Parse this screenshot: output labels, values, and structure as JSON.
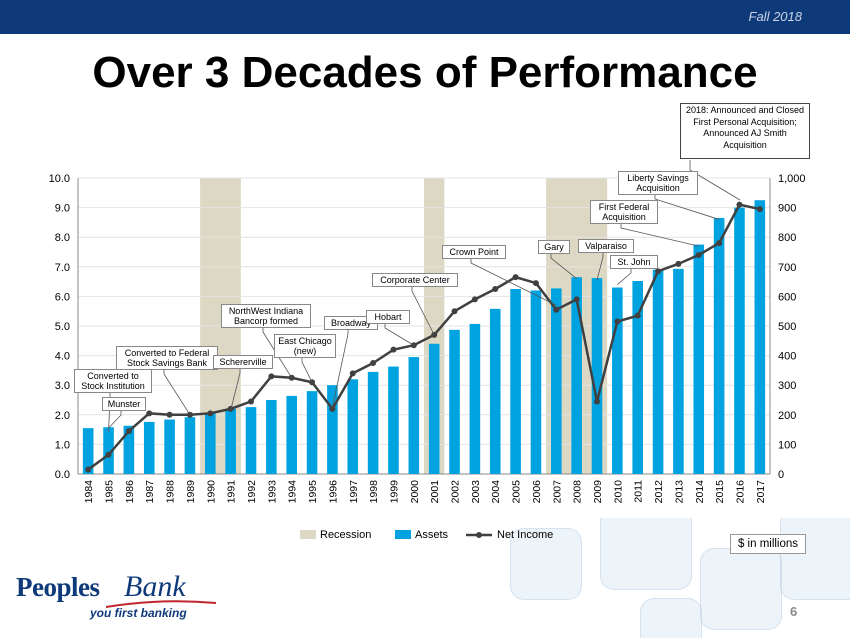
{
  "header": {
    "season": "Fall 2018"
  },
  "title": "Over 3 Decades of Performance",
  "units_note": "$ in millions",
  "page_number": "6",
  "logo": {
    "word1": "Peoples",
    "word2": "Bank",
    "tagline": "you first banking"
  },
  "colors": {
    "header_bar": "#0f3a7a",
    "assets": "#00a3e0",
    "net_income": "#404040",
    "recession": "#ddd8c4",
    "brand": "#0f3a7a"
  },
  "note_2018": "2018: Announced and Closed First Personal Acquisition; Announced AJ Smith Acquisition",
  "chart_data": {
    "type": "bar",
    "categories": [
      "1984",
      "1985",
      "1986",
      "1987",
      "1988",
      "1989",
      "1990",
      "1991",
      "1992",
      "1993",
      "1994",
      "1995",
      "1996",
      "1997",
      "1998",
      "1999",
      "2000",
      "2001",
      "2002",
      "2003",
      "2004",
      "2005",
      "2006",
      "2007",
      "2008",
      "2009",
      "2010",
      "2011",
      "2012",
      "2013",
      "2014",
      "2015",
      "2016",
      "2017"
    ],
    "left_axis": {
      "min": 0,
      "max": 10,
      "ticks": [
        "0.0",
        "1.0",
        "2.0",
        "3.0",
        "4.0",
        "5.0",
        "6.0",
        "7.0",
        "8.0",
        "9.0",
        "10.0"
      ]
    },
    "right_axis": {
      "min": 0,
      "max": 1000,
      "ticks": [
        "0",
        "100",
        "200",
        "300",
        "400",
        "500",
        "600",
        "700",
        "800",
        "900",
        "1,000"
      ]
    },
    "series": [
      {
        "name": "Assets",
        "kind": "bar",
        "axis": "right",
        "values": [
          155,
          158,
          163,
          176,
          184,
          192,
          208,
          220,
          226,
          250,
          264,
          280,
          300,
          320,
          345,
          363,
          395,
          440,
          487,
          507,
          558,
          625,
          620,
          627,
          665,
          662,
          630,
          652,
          690,
          693,
          775,
          865,
          900,
          925
        ]
      },
      {
        "name": "Net Income",
        "kind": "line",
        "axis": "left",
        "values": [
          0.15,
          0.65,
          1.45,
          2.05,
          2.0,
          2.0,
          2.05,
          2.2,
          2.45,
          3.3,
          3.25,
          3.1,
          2.2,
          3.4,
          3.75,
          4.2,
          4.35,
          4.7,
          5.5,
          5.9,
          6.25,
          6.65,
          6.45,
          5.55,
          5.9,
          2.45,
          5.15,
          5.35,
          6.85,
          7.1,
          7.4,
          7.8,
          9.1,
          8.95
        ]
      }
    ],
    "recessions": [
      {
        "start": "1990",
        "end": "1991"
      },
      {
        "start": "2001",
        "end": "2001"
      },
      {
        "start": "2007",
        "end": "2009"
      }
    ],
    "legend": {
      "placement": "bottom",
      "items": [
        "Recession",
        "Assets",
        "Net Income"
      ]
    },
    "annotations": [
      {
        "text": "Converted to Stock Institution",
        "year": "1984"
      },
      {
        "text": "Munster",
        "year": "1985"
      },
      {
        "text": "Converted to Federal Stock Savings Bank",
        "year": "1989"
      },
      {
        "text": "Schererville",
        "year": "1991"
      },
      {
        "text": "NorthWest Indiana Bancorp formed",
        "year": "1994"
      },
      {
        "text": "East Chicago (new)",
        "year": "1995"
      },
      {
        "text": "Broadway",
        "year": "1996"
      },
      {
        "text": "Hobart",
        "year": "2000"
      },
      {
        "text": "Corporate Center",
        "year": "2001"
      },
      {
        "text": "Crown Point",
        "year": "2007"
      },
      {
        "text": "Gary",
        "year": "2008"
      },
      {
        "text": "Valparaiso",
        "year": "2009"
      },
      {
        "text": "St. John",
        "year": "2010"
      },
      {
        "text": "First Federal Acquisition",
        "year": "2014"
      },
      {
        "text": "Liberty Savings Acquisition",
        "year": "2015"
      }
    ]
  }
}
